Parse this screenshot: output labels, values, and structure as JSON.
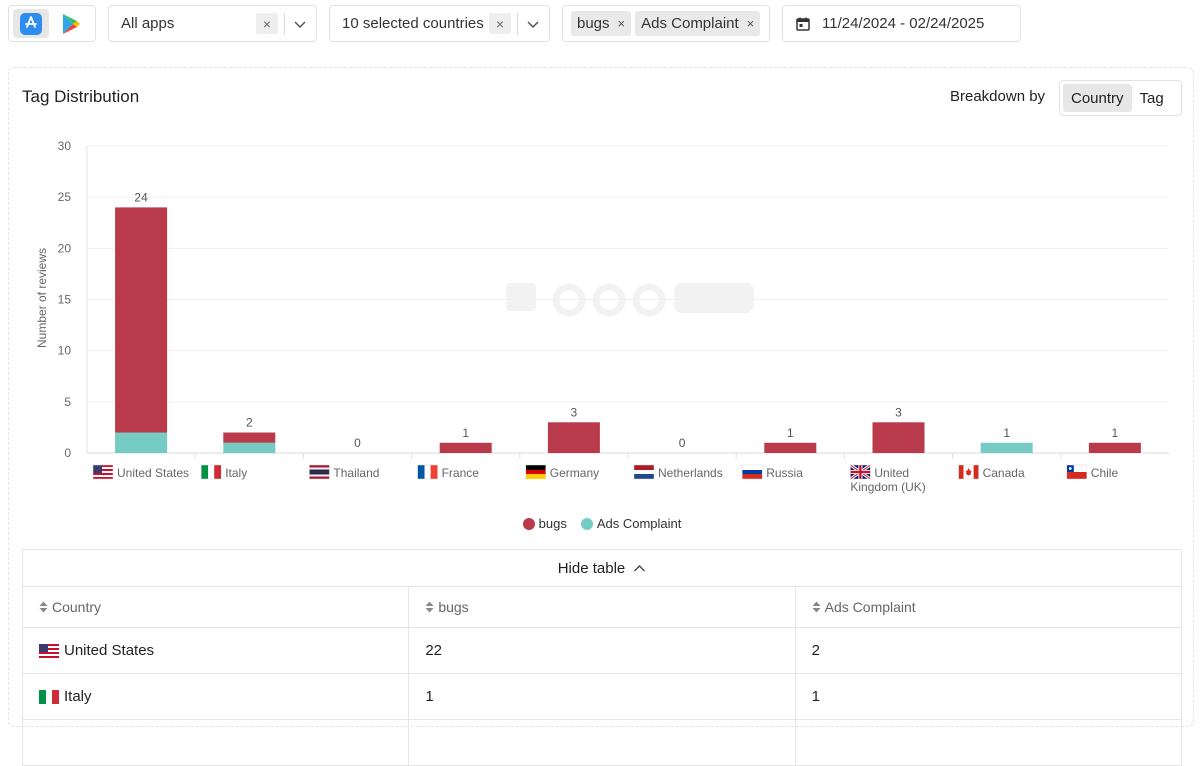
{
  "filters": {
    "apps": {
      "value": "All apps"
    },
    "countries": {
      "value": "10 selected countries"
    },
    "tags": [
      {
        "label": "bugs"
      },
      {
        "label": "Ads Complaint"
      }
    ],
    "date_range": "11/24/2024 - 02/24/2025",
    "clear_glyph": "×",
    "store_icons": [
      "app-store-icon",
      "google-play-icon"
    ]
  },
  "panel": {
    "title": "Tag Distribution",
    "breakdown_label": "Breakdown by",
    "breakdown_options": [
      "Country",
      "Tag"
    ],
    "breakdown_selected": "Country"
  },
  "colors": {
    "bugs": "#b83a4b",
    "ads": "#76cbc4"
  },
  "chart_data": {
    "type": "bar",
    "stacked": true,
    "ylabel": "Number of reviews",
    "ylim": [
      0,
      30
    ],
    "yticks": [
      0,
      5,
      10,
      15,
      20,
      25,
      30
    ],
    "categories": [
      "United States",
      "Italy",
      "Thailand",
      "France",
      "Germany",
      "Netherlands",
      "Russia",
      "United Kingdom (UK)",
      "Canada",
      "Chile"
    ],
    "category_lines": [
      [
        "United States"
      ],
      [
        "Italy"
      ],
      [
        "Thailand"
      ],
      [
        "France"
      ],
      [
        "Germany"
      ],
      [
        "Netherlands"
      ],
      [
        "Russia"
      ],
      [
        "United",
        "Kingdom (UK)"
      ],
      [
        "Canada"
      ],
      [
        "Chile"
      ]
    ],
    "flags": [
      "us",
      "it",
      "th",
      "fr",
      "de",
      "nl",
      "ru",
      "uk",
      "ca",
      "cl"
    ],
    "series": [
      {
        "name": "bugs",
        "values": [
          22,
          1,
          0,
          1,
          3,
          0,
          1,
          3,
          0,
          1
        ]
      },
      {
        "name": "Ads Complaint",
        "values": [
          2,
          1,
          0,
          0,
          0,
          0,
          0,
          0,
          1,
          0
        ]
      }
    ],
    "totals": [
      24,
      2,
      0,
      1,
      3,
      0,
      1,
      3,
      1,
      1
    ],
    "legend": [
      "bugs",
      "Ads Complaint"
    ],
    "legend_position": "bottom",
    "grid": true
  },
  "table": {
    "toggle_label": "Hide table",
    "columns": [
      "Country",
      "bugs",
      "Ads Complaint"
    ],
    "rows": [
      {
        "country": "United States",
        "flag": "us",
        "bugs": "22",
        "ads": "2"
      },
      {
        "country": "Italy",
        "flag": "it",
        "bugs": "1",
        "ads": "1"
      }
    ]
  }
}
